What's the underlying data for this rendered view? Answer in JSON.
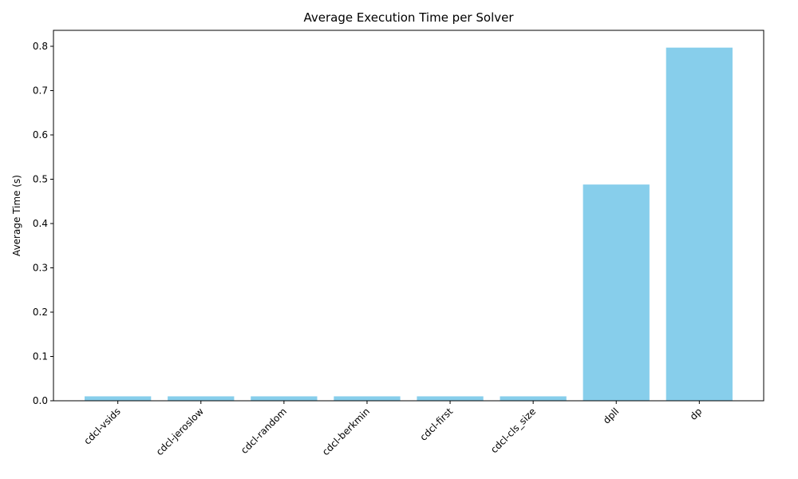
{
  "chart_data": {
    "type": "bar",
    "title": "Average Execution Time per Solver",
    "xlabel": "",
    "ylabel": "Average Time (s)",
    "categories": [
      "cdcl-vsids",
      "cdcl-jeroslow",
      "cdcl-random",
      "cdcl-berkmin",
      "cdcl-first",
      "cdcl-cls_size",
      "dpll",
      "dp"
    ],
    "values": [
      0.01,
      0.01,
      0.01,
      0.01,
      0.01,
      0.01,
      0.488,
      0.797
    ],
    "ylim": [
      0,
      0.836
    ],
    "yticks": [
      0.0,
      0.1,
      0.2,
      0.3,
      0.4,
      0.5,
      0.6,
      0.7,
      0.8
    ],
    "ytick_labels": [
      "0.0",
      "0.1",
      "0.2",
      "0.3",
      "0.4",
      "0.5",
      "0.6",
      "0.7",
      "0.8"
    ],
    "bar_color": "#87ceeb",
    "grid": false,
    "legend": "none"
  }
}
